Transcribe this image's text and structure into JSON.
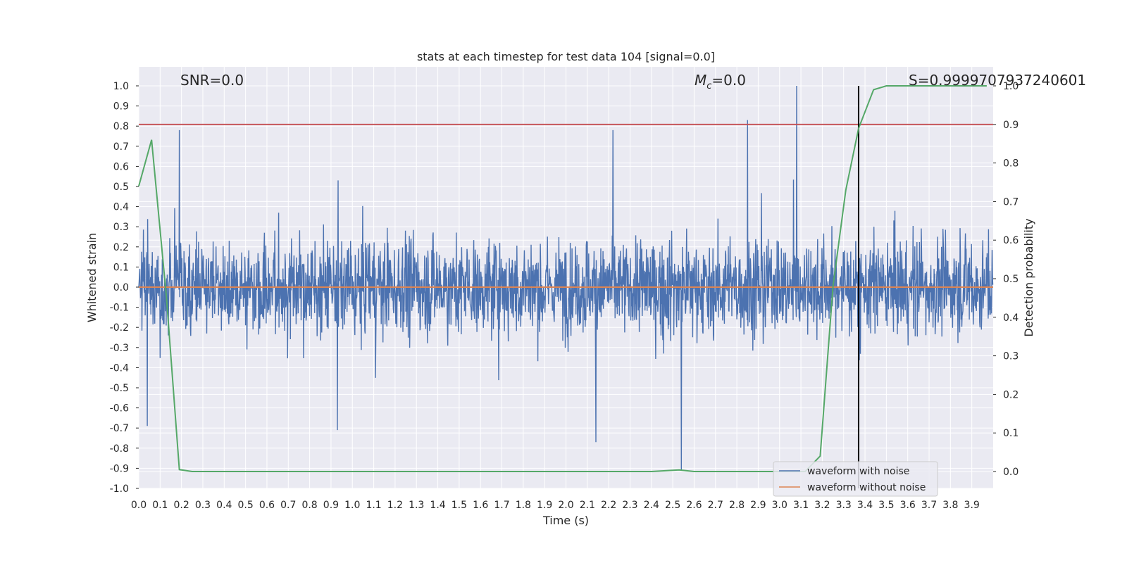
{
  "chart_data": {
    "type": "line",
    "title": "stats at each timestep for test data 104 [signal=0.0]",
    "xlabel": "Time (s)",
    "ylabel": "Whitened strain",
    "y2label": "Detection probability",
    "xlim": [
      0.0,
      4.0
    ],
    "ylim": [
      -1.0,
      1.0
    ],
    "y2lim": [
      -0.05,
      1.0
    ],
    "x_ticks": [
      "0.0",
      "0.1",
      "0.2",
      "0.3",
      "0.4",
      "0.5",
      "0.6",
      "0.7",
      "0.8",
      "0.9",
      "1.0",
      "1.1",
      "1.2",
      "1.3",
      "1.4",
      "1.5",
      "1.6",
      "1.7",
      "1.8",
      "1.9",
      "2.0",
      "2.1",
      "2.2",
      "2.3",
      "2.4",
      "2.5",
      "2.6",
      "2.7",
      "2.8",
      "2.9",
      "3.0",
      "3.1",
      "3.2",
      "3.3",
      "3.4",
      "3.5",
      "3.6",
      "3.7",
      "3.8",
      "3.9"
    ],
    "y_ticks": [
      "-1.0",
      "-0.9",
      "-0.8",
      "-0.7",
      "-0.6",
      "-0.5",
      "-0.4",
      "-0.3",
      "-0.2",
      "-0.1",
      "0.0",
      "0.1",
      "0.2",
      "0.3",
      "0.4",
      "0.5",
      "0.6",
      "0.7",
      "0.8",
      "0.9",
      "1.0"
    ],
    "y2_ticks": [
      "0.0",
      "0.1",
      "0.2",
      "0.3",
      "0.4",
      "0.5",
      "0.6",
      "0.7",
      "0.8",
      "0.9",
      "1.0"
    ],
    "grid": true,
    "legend_position": "lower-right",
    "annotations": {
      "snr": "SNR=0.0",
      "mc_symbol": "M",
      "mc_sub": "c",
      "mc_value": "=0.0",
      "s": "S=0.9999707937240601"
    },
    "series": [
      {
        "name": "waveform with noise",
        "color": "#4c72b0",
        "axis": "left",
        "description_of_values": "dense noise, approx. range -0.9 to 1.0",
        "spikes": [
          {
            "x": 0.19,
            "y": 0.78
          },
          {
            "x": 2.85,
            "y": 0.83
          },
          {
            "x": 3.08,
            "y": 1.0
          },
          {
            "x": 2.22,
            "y": 0.78
          },
          {
            "x": 2.54,
            "y": -0.91
          },
          {
            "x": 2.14,
            "y": -0.77
          },
          {
            "x": 0.04,
            "y": -0.69
          },
          {
            "x": 0.93,
            "y": -0.71
          }
        ]
      },
      {
        "name": "waveform without noise",
        "color": "#dd8452",
        "axis": "left",
        "x": [
          0.0,
          4.0
        ],
        "y": [
          0.0,
          0.0
        ]
      },
      {
        "name": "",
        "color": "#55a868",
        "axis": "right",
        "x": [
          0.0,
          0.06,
          0.13,
          0.19,
          0.25,
          0.5,
          1.0,
          1.5,
          2.0,
          2.4,
          2.53,
          2.6,
          3.0,
          3.12,
          3.19,
          3.25,
          3.31,
          3.37,
          3.44,
          3.5,
          3.6,
          3.7,
          3.8,
          3.9,
          3.97
        ],
        "y": [
          0.74,
          0.86,
          0.45,
          0.005,
          0.0,
          0.0,
          0.0,
          0.0,
          0.0,
          0.0,
          0.004,
          0.0,
          0.0,
          0.0,
          0.04,
          0.48,
          0.73,
          0.89,
          0.99,
          1.0,
          1.0,
          1.0,
          1.0,
          1.0,
          1.0
        ]
      }
    ],
    "reference_lines": {
      "threshold": {
        "axis": "right",
        "value": 0.9,
        "color": "#c44e52"
      },
      "detection_time": {
        "axis": "x",
        "value": 3.37,
        "color": "#000000"
      }
    }
  }
}
